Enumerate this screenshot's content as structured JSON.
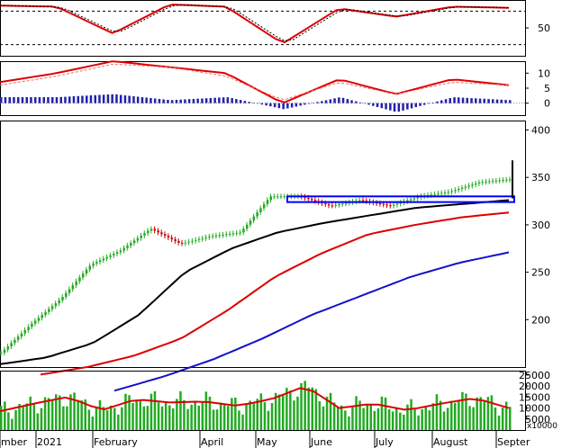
{
  "chart_data": [
    {
      "type": "line",
      "panel": "oscillator",
      "series": [
        {
          "x": [
            "2020-12",
            "2021-01",
            "2021-02",
            "2021-03",
            "2021-04",
            "2021-05",
            "2021-06",
            "2021-07",
            "2021-08",
            "2021-09"
          ],
          "values": [
            90,
            88,
            40,
            92,
            88,
            22,
            85,
            70,
            88,
            86
          ]
        }
      ],
      "ytick_labels": [
        "50"
      ],
      "yticks": [
        50
      ],
      "ylim": [
        0,
        100
      ],
      "reference_lines": [
        80,
        20
      ],
      "colors": {
        "main": "#dd0000",
        "signal": "#000000"
      }
    },
    {
      "type": "line",
      "panel": "macd",
      "series": [
        {
          "values": [
            7,
            10,
            14,
            12,
            10,
            0,
            8,
            3,
            8,
            6
          ]
        },
        {
          "values": [
            6,
            9,
            13,
            12,
            9,
            1,
            7,
            3,
            7,
            6
          ]
        },
        {
          "values": [
            2,
            2,
            3,
            1,
            2,
            -2,
            2,
            -3,
            2,
            1
          ]
        }
      ],
      "ytick_labels": [
        "10",
        "5",
        "0"
      ],
      "yticks": [
        10,
        5,
        0
      ],
      "ylim": [
        -4,
        14
      ],
      "colors": {
        "macd": "#dd0000",
        "signal": "#ff6666",
        "histogram": "#2222aa"
      }
    },
    {
      "type": "line",
      "panel": "price",
      "series": [
        {
          "values": [
            165,
            195,
            222,
            258,
            273,
            296,
            280,
            288,
            292,
            330,
            330,
            320,
            326,
            320,
            330,
            335,
            345,
            348
          ]
        },
        {
          "values": [
            153,
            160,
            175,
            205,
            250,
            275,
            292,
            302,
            310,
            318,
            322,
            326
          ]
        },
        {
          "values": [
            142,
            150,
            162,
            180,
            210,
            245,
            270,
            290,
            300,
            308,
            313
          ]
        },
        {
          "values": [
            125,
            140,
            158,
            180,
            205,
            225,
            245,
            260,
            271
          ]
        }
      ],
      "yticks": [
        400,
        350,
        300,
        250,
        200
      ],
      "ytick_labels": [
        "400",
        "350",
        "300",
        "250",
        "200"
      ],
      "ylim": [
        150,
        410
      ],
      "resistance_box": [
        324,
        330
      ],
      "colors": {
        "candles": "#22aa22",
        "ma_short": "#000000",
        "ma_mid": "#dd0000",
        "ma_long": "#1111cc",
        "box": "#0000ff"
      }
    },
    {
      "type": "bar",
      "panel": "volume",
      "series": [
        {
          "values": [
            8500,
            12000,
            15000,
            9000,
            14000,
            12500,
            13000,
            11000,
            14000,
            20000,
            10000,
            12000,
            9000,
            12000,
            14500,
            10000
          ]
        }
      ],
      "yticks": [
        25000,
        20000,
        15000,
        10000,
        5000
      ],
      "ytick_labels": [
        "25000",
        "20000",
        "15000",
        "10000",
        "5000"
      ],
      "unit_label": "x10000",
      "ylim": [
        0,
        27000
      ],
      "colors": {
        "bars": "#22aa22",
        "average": "#dd0000"
      }
    }
  ],
  "x_axis": {
    "tick_labels": [
      "mber",
      "2021",
      "February",
      "April",
      "May",
      "June",
      "July",
      "August",
      "Septer"
    ]
  }
}
